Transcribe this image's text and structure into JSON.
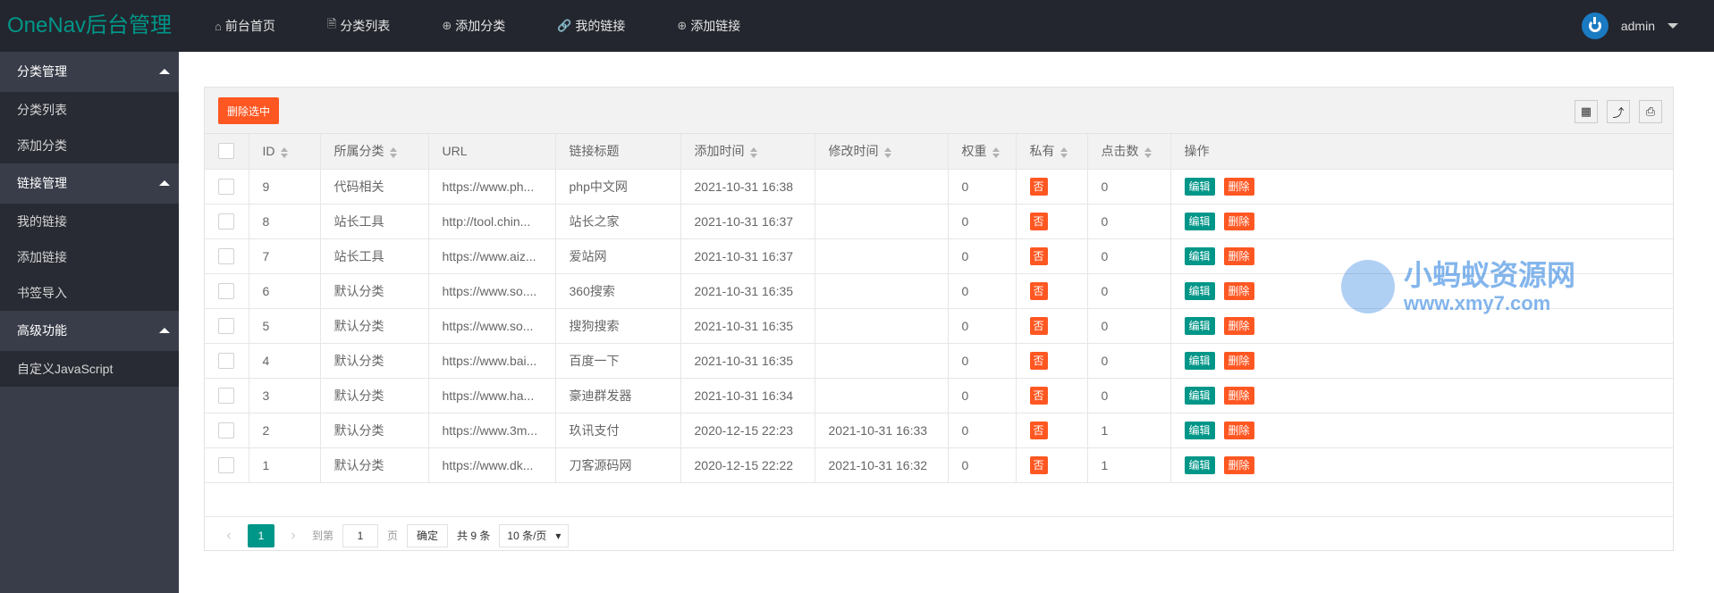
{
  "app": {
    "title": "OneNav后台管理"
  },
  "nav": [
    {
      "icon": "home-icon",
      "glyph": "⌂",
      "label": "前台首页"
    },
    {
      "icon": "document-icon",
      "glyph": "🗎",
      "label": "分类列表"
    },
    {
      "icon": "plus-circle-icon",
      "glyph": "⊕",
      "label": "添加分类"
    },
    {
      "icon": "link-icon",
      "glyph": "🔗",
      "label": "我的链接"
    },
    {
      "icon": "plus-circle-icon",
      "glyph": "⊕",
      "label": "添加链接"
    }
  ],
  "user": {
    "name": "admin"
  },
  "sidebar": [
    {
      "title": "分类管理",
      "items": [
        "分类列表",
        "添加分类"
      ]
    },
    {
      "title": "链接管理",
      "items": [
        "我的链接",
        "添加链接",
        "书签导入"
      ]
    },
    {
      "title": "高级功能",
      "items": [
        "自定义JavaScript"
      ]
    }
  ],
  "toolbar": {
    "delete_selected": "删除选中",
    "tools": [
      "columns-icon",
      "export-icon",
      "print-icon"
    ]
  },
  "table": {
    "headers": [
      "ID",
      "所属分类",
      "URL",
      "链接标题",
      "添加时间",
      "修改时间",
      "权重",
      "私有",
      "点击数",
      "操作"
    ],
    "rows": [
      {
        "id": "9",
        "category": "代码相关",
        "url": "https://www.ph...",
        "title": "php中文网",
        "added": "2021-10-31 16:38",
        "modified": "",
        "weight": "0",
        "private": "否",
        "clicks": "0"
      },
      {
        "id": "8",
        "category": "站长工具",
        "url": "http://tool.chin...",
        "title": "站长之家",
        "added": "2021-10-31 16:37",
        "modified": "",
        "weight": "0",
        "private": "否",
        "clicks": "0"
      },
      {
        "id": "7",
        "category": "站长工具",
        "url": "https://www.aiz...",
        "title": "爱站网",
        "added": "2021-10-31 16:37",
        "modified": "",
        "weight": "0",
        "private": "否",
        "clicks": "0"
      },
      {
        "id": "6",
        "category": "默认分类",
        "url": "https://www.so....",
        "title": "360搜索",
        "added": "2021-10-31 16:35",
        "modified": "",
        "weight": "0",
        "private": "否",
        "clicks": "0"
      },
      {
        "id": "5",
        "category": "默认分类",
        "url": "https://www.so...",
        "title": "搜狗搜索",
        "added": "2021-10-31 16:35",
        "modified": "",
        "weight": "0",
        "private": "否",
        "clicks": "0"
      },
      {
        "id": "4",
        "category": "默认分类",
        "url": "https://www.bai...",
        "title": "百度一下",
        "added": "2021-10-31 16:35",
        "modified": "",
        "weight": "0",
        "private": "否",
        "clicks": "0"
      },
      {
        "id": "3",
        "category": "默认分类",
        "url": "https://www.ha...",
        "title": "豪迪群发器",
        "added": "2021-10-31 16:34",
        "modified": "",
        "weight": "0",
        "private": "否",
        "clicks": "0"
      },
      {
        "id": "2",
        "category": "默认分类",
        "url": "https://www.3m...",
        "title": "玖讯支付",
        "added": "2020-12-15 22:23",
        "modified": "2021-10-31 16:33",
        "weight": "0",
        "private": "否",
        "clicks": "1"
      },
      {
        "id": "1",
        "category": "默认分类",
        "url": "https://www.dk...",
        "title": "刀客源码网",
        "added": "2020-12-15 22:22",
        "modified": "2021-10-31 16:32",
        "weight": "0",
        "private": "否",
        "clicks": "1"
      }
    ],
    "actions": {
      "edit": "编辑",
      "delete": "删除"
    }
  },
  "pagination": {
    "current": "1",
    "goto_label": "到第",
    "page_input": "1",
    "page_suffix": "页",
    "confirm": "确定",
    "total": "共 9 条",
    "page_size": "10 条/页"
  },
  "watermark": {
    "cn": "小蚂蚁资源网",
    "url": "www.xmy7.com"
  },
  "colors": {
    "header": "#23262e",
    "sidebar": "#393d49",
    "accent": "#009688",
    "danger": "#ff5722"
  }
}
